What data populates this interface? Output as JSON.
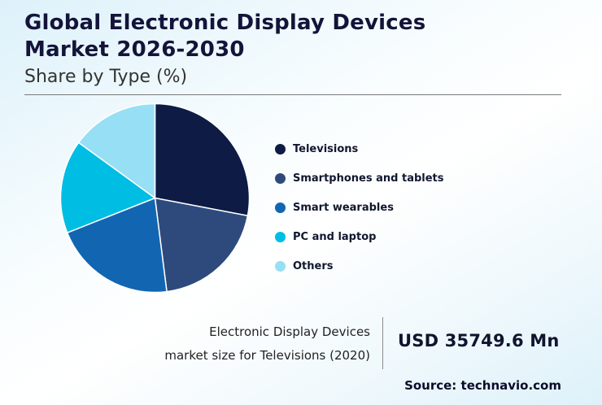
{
  "header": {
    "title_line1": "Global Electronic Display Devices",
    "title_line2": "Market 2026-2030",
    "subtitle": "Share by Type (%)"
  },
  "chart_data": {
    "type": "pie",
    "title": "Global Electronic Display Devices Market 2026-2030 — Share by Type (%)",
    "legend_position": "right",
    "start_angle_deg": -90,
    "direction": "clockwise",
    "segments": [
      {
        "label": "Televisions",
        "value": 28,
        "color": "#0d1b45"
      },
      {
        "label": "Smartphones and tablets",
        "value": 20,
        "color": "#2e4a7d"
      },
      {
        "label": "Smart wearables",
        "value": 21,
        "color": "#1266b1"
      },
      {
        "label": "PC and laptop",
        "value": 16,
        "color": "#00bde3"
      },
      {
        "label": "Others",
        "value": 15,
        "color": "#97dff4"
      }
    ]
  },
  "footer": {
    "caption_line1": "Electronic Display Devices",
    "caption_line2": "market size for Televisions (2020)",
    "value": "USD 35749.6 Mn",
    "source": "Source: technavio.com"
  }
}
